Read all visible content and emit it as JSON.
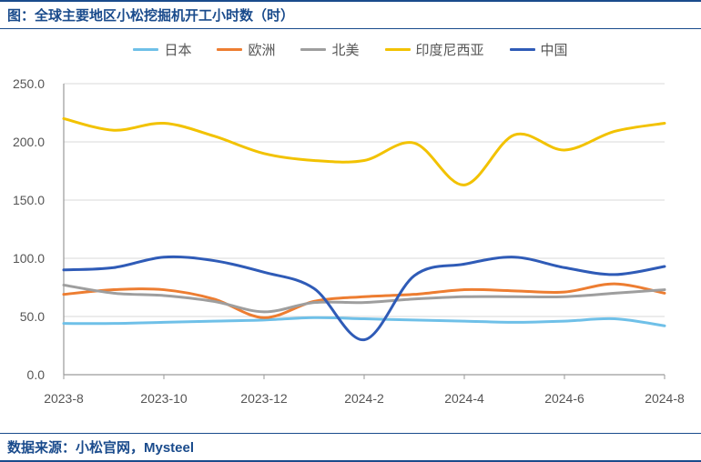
{
  "title": "图：全球主要地区小松挖掘机开工小时数（时）",
  "source": "数据来源：小松官网，Mysteel",
  "chart": {
    "type": "line",
    "background_color": "#ffffff",
    "grid_color": "#d9d9d9",
    "axis_color": "#9a9a9a",
    "text_color": "#595959",
    "title_color": "#1a4b8c",
    "border_color": "#1a4b8c",
    "ylim": [
      0,
      250
    ],
    "ytick_step": 50,
    "ytick_labels": [
      "0.0",
      "50.0",
      "100.0",
      "150.0",
      "200.0",
      "250.0"
    ],
    "x_categories": [
      "2023-8",
      "2023-9",
      "2023-10",
      "2023-11",
      "2023-12",
      "2024-1",
      "2024-2",
      "2024-3",
      "2024-4",
      "2024-5",
      "2024-6",
      "2024-7",
      "2024-8"
    ],
    "x_tick_labels": [
      "2023-8",
      "2023-10",
      "2023-12",
      "2024-2",
      "2024-4",
      "2024-6",
      "2024-8"
    ],
    "x_tick_indices": [
      0,
      2,
      4,
      6,
      8,
      10,
      12
    ],
    "line_width": 3,
    "series": [
      {
        "name": "日本",
        "color": "#6fc0e8",
        "values": [
          44,
          44,
          45,
          46,
          47,
          49,
          48,
          47,
          46,
          45,
          46,
          48,
          42
        ]
      },
      {
        "name": "欧洲",
        "color": "#ed7d31",
        "values": [
          69,
          73,
          73,
          65,
          49,
          63,
          67,
          69,
          73,
          72,
          71,
          78,
          70
        ]
      },
      {
        "name": "北美",
        "color": "#9e9e9e",
        "values": [
          77,
          70,
          68,
          63,
          54,
          62,
          62,
          65,
          67,
          67,
          67,
          70,
          73
        ]
      },
      {
        "name": "印度尼西亚",
        "color": "#f2c200",
        "values": [
          220,
          210,
          216,
          205,
          190,
          184,
          184,
          199,
          163,
          206,
          193,
          209,
          216
        ]
      },
      {
        "name": "中国",
        "color": "#2f5bb7",
        "values": [
          90,
          92,
          101,
          98,
          88,
          74,
          30,
          85,
          95,
          101,
          92,
          86,
          93
        ]
      }
    ],
    "legend_fontsize": 15,
    "axis_fontsize": 14,
    "title_fontsize": 15
  }
}
